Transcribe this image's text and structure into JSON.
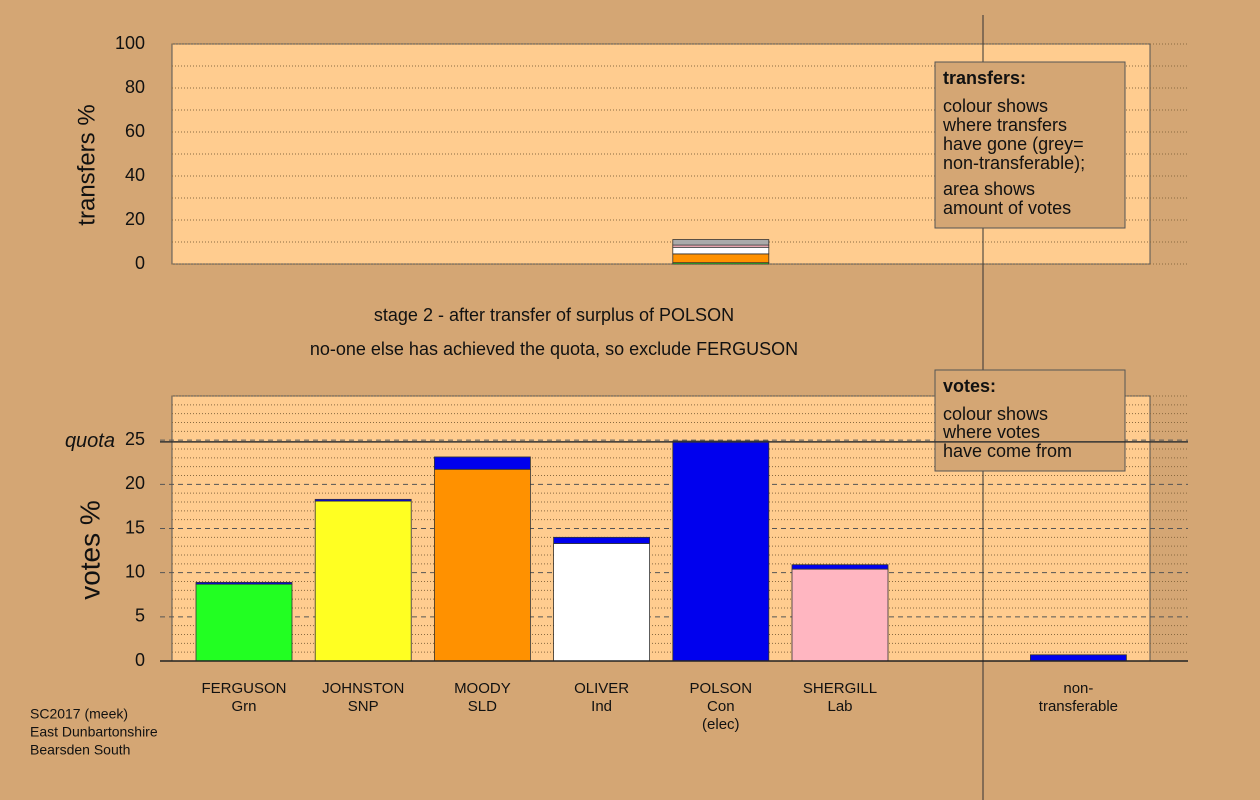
{
  "title": "stage 2 - after transfer of surplus of POLSON",
  "subtitle": "no-one else has achieved the quota, so exclude FERGUSON",
  "footer": [
    "SC2017 (meek)",
    "East Dunbartonshire",
    "Bearsden South"
  ],
  "transfers_note": {
    "heading": "transfers:",
    "lines": [
      "colour shows",
      "where transfers",
      "have gone (grey=",
      "non-transferable);",
      "area shows",
      "amount of votes"
    ]
  },
  "votes_note": {
    "heading": "votes:",
    "lines": [
      "colour shows",
      "where votes",
      "have come from"
    ]
  },
  "chart_data": [
    {
      "type": "bar",
      "stacked": true,
      "y_label": "transfers %",
      "categories": [
        null,
        null,
        null,
        null,
        null,
        null,
        null,
        null
      ],
      "series": [
        {
          "color": "#22ff22",
          "values": [
            null,
            null,
            null,
            null,
            0.6,
            null,
            null,
            null
          ]
        },
        {
          "color": "#ff9100",
          "values": [
            null,
            null,
            null,
            null,
            4,
            null,
            null,
            null
          ]
        },
        {
          "color": "#ffffff",
          "values": [
            null,
            null,
            null,
            null,
            3,
            null,
            null,
            null
          ]
        },
        {
          "color": "#ffb6c1",
          "values": [
            null,
            null,
            null,
            null,
            1,
            null,
            null,
            null
          ]
        },
        {
          "color": "#aaaaaa",
          "values": [
            null,
            null,
            null,
            null,
            2.5,
            null,
            null,
            null
          ]
        }
      ],
      "ylim": [
        0,
        100
      ],
      "yticks": [
        0,
        20,
        40,
        60,
        80,
        100
      ],
      "minor_grid": 10
    },
    {
      "type": "bar",
      "stacked": true,
      "y_label": "votes %",
      "categories": [
        [
          "FERGUSON",
          "Grn"
        ],
        [
          "JOHNSTON",
          "SNP"
        ],
        [
          "MOODY",
          "SLD"
        ],
        [
          "OLIVER",
          "Ind"
        ],
        [
          "POLSON",
          "Con",
          "(elec)"
        ],
        [
          "SHERGILL",
          "Lab"
        ],
        null,
        [
          "non-",
          "transferable"
        ]
      ],
      "series": [
        {
          "colors": [
            "#22ff22",
            "#ffff22",
            "#ff9100",
            "#ffffff",
            "#0000ee",
            "#ffb6c1",
            null,
            null
          ],
          "values": [
            8.7,
            18.1,
            21.7,
            13.3,
            24.9,
            10.4,
            null,
            null
          ]
        },
        {
          "color": "#0000ee",
          "values": [
            0.2,
            0.2,
            1.4,
            0.7,
            null,
            0.5,
            null,
            0.7
          ]
        }
      ],
      "quota": {
        "label": "quota",
        "value": 24.8
      },
      "ylim": [
        0,
        30
      ],
      "yticks": [
        0,
        5,
        10,
        15,
        20,
        25
      ],
      "minor_grid": 1
    }
  ]
}
